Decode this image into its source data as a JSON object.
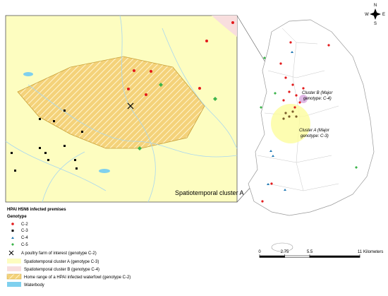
{
  "inset": {
    "label": "Spatiotemporal cluster A"
  },
  "legend": {
    "title": "HPAI H5N6 infected premises",
    "subtitle": "Genotype",
    "genotypes": [
      "C-2",
      "C-3",
      "C-4",
      "C-5"
    ],
    "items": [
      "A poultry farm of interest (genotype C-2)",
      "Spatiotemporal cluster A (genotype C-3)",
      "Spatiotemporal cluster B (genotype C-4)",
      "Home range of a HPAI infected waterfowl (genotype C-2)",
      "Waterbody"
    ]
  },
  "map": {
    "cluster_b": [
      "Cluster B (Major",
      "genotype: C-4)"
    ],
    "cluster_a": [
      "Cluster A (Major",
      "genotype: C-3)"
    ]
  },
  "compass": {
    "n": "N",
    "e": "E",
    "s": "S",
    "w": "W"
  },
  "scale_bar": {
    "ticks": [
      0,
      2.75,
      5.5,
      11
    ],
    "unit": "Kilometers"
  }
}
